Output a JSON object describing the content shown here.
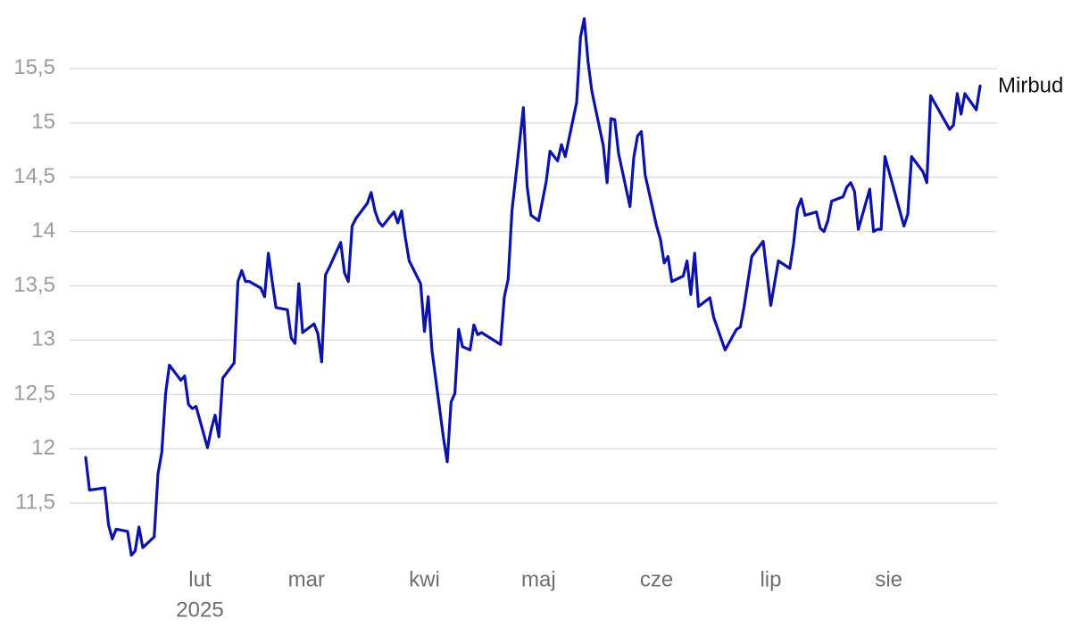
{
  "chart_data": {
    "type": "line",
    "x": [
      "2025-01-02",
      "2025-01-03",
      "2025-01-07",
      "2025-01-08",
      "2025-01-09",
      "2025-01-10",
      "2025-01-13",
      "2025-01-14",
      "2025-01-15",
      "2025-01-16",
      "2025-01-17",
      "2025-01-20",
      "2025-01-21",
      "2025-01-22",
      "2025-01-23",
      "2025-01-24",
      "2025-01-27",
      "2025-01-28",
      "2025-01-29",
      "2025-01-30",
      "2025-01-31",
      "2025-02-03",
      "2025-02-04",
      "2025-02-05",
      "2025-02-06",
      "2025-02-07",
      "2025-02-10",
      "2025-02-11",
      "2025-02-12",
      "2025-02-13",
      "2025-02-14",
      "2025-02-17",
      "2025-02-18",
      "2025-02-19",
      "2025-02-20",
      "2025-02-21",
      "2025-02-24",
      "2025-02-25",
      "2025-02-26",
      "2025-02-27",
      "2025-02-28",
      "2025-03-03",
      "2025-03-04",
      "2025-03-05",
      "2025-03-06",
      "2025-03-07",
      "2025-03-10",
      "2025-03-11",
      "2025-03-12",
      "2025-03-13",
      "2025-03-14",
      "2025-03-17",
      "2025-03-18",
      "2025-03-19",
      "2025-03-20",
      "2025-03-21",
      "2025-03-24",
      "2025-03-25",
      "2025-03-26",
      "2025-03-27",
      "2025-03-28",
      "2025-03-31",
      "2025-04-01",
      "2025-04-02",
      "2025-04-03",
      "2025-04-06",
      "2025-04-07",
      "2025-04-08",
      "2025-04-09",
      "2025-04-10",
      "2025-04-11",
      "2025-04-13",
      "2025-04-14",
      "2025-04-15",
      "2025-04-16",
      "2025-04-21",
      "2025-04-22",
      "2025-04-23",
      "2025-04-24",
      "2025-04-26",
      "2025-04-27",
      "2025-04-28",
      "2025-04-29",
      "2025-05-01",
      "2025-05-03",
      "2025-05-04",
      "2025-05-06",
      "2025-05-07",
      "2025-05-08",
      "2025-05-11",
      "2025-05-12",
      "2025-05-13",
      "2025-05-14",
      "2025-05-15",
      "2025-05-18",
      "2025-05-19",
      "2025-05-20",
      "2025-05-21",
      "2025-05-22",
      "2025-05-25",
      "2025-05-26",
      "2025-05-27",
      "2025-05-28",
      "2025-05-29",
      "2025-06-01",
      "2025-06-02",
      "2025-06-03",
      "2025-06-04",
      "2025-06-05",
      "2025-06-08",
      "2025-06-09",
      "2025-06-10",
      "2025-06-11",
      "2025-06-12",
      "2025-06-15",
      "2025-06-16",
      "2025-06-19",
      "2025-06-22",
      "2025-06-23",
      "2025-06-24",
      "2025-06-26",
      "2025-06-29",
      "2025-07-01",
      "2025-07-03",
      "2025-07-06",
      "2025-07-07",
      "2025-07-08",
      "2025-07-09",
      "2025-07-10",
      "2025-07-13",
      "2025-07-14",
      "2025-07-15",
      "2025-07-16",
      "2025-07-17",
      "2025-07-20",
      "2025-07-21",
      "2025-07-22",
      "2025-07-23",
      "2025-07-24",
      "2025-07-27",
      "2025-07-28",
      "2025-07-29",
      "2025-07-30",
      "2025-07-31",
      "2025-08-05",
      "2025-08-06",
      "2025-08-07",
      "2025-08-10",
      "2025-08-11",
      "2025-08-12",
      "2025-08-17",
      "2025-08-18",
      "2025-08-19",
      "2025-08-20",
      "2025-08-21",
      "2025-08-24",
      "2025-08-25"
    ],
    "series": [
      {
        "name": "Mirbud",
        "color": "#0d12a8",
        "values": [
          11.92,
          11.62,
          11.64,
          11.3,
          11.17,
          11.26,
          11.24,
          11.02,
          11.06,
          11.28,
          11.09,
          11.19,
          11.77,
          11.97,
          12.51,
          12.77,
          12.63,
          12.67,
          12.41,
          12.37,
          12.39,
          12.01,
          12.18,
          12.31,
          12.11,
          12.65,
          12.79,
          13.54,
          13.64,
          13.54,
          13.54,
          13.48,
          13.4,
          13.8,
          13.54,
          13.3,
          13.28,
          13.02,
          12.97,
          13.52,
          13.07,
          13.15,
          13.06,
          12.8,
          13.6,
          13.67,
          13.9,
          13.62,
          13.54,
          14.05,
          14.12,
          14.26,
          14.36,
          14.19,
          14.09,
          14.05,
          14.18,
          14.08,
          14.19,
          13.94,
          13.73,
          13.52,
          13.08,
          13.4,
          12.9,
          12.1,
          11.88,
          12.43,
          12.51,
          13.1,
          12.94,
          12.91,
          13.14,
          13.05,
          13.07,
          12.96,
          13.4,
          13.56,
          14.19,
          14.82,
          15.14,
          14.41,
          14.15,
          14.1,
          14.46,
          14.74,
          14.65,
          14.8,
          14.69,
          15.19,
          15.79,
          15.96,
          15.56,
          15.29,
          14.79,
          14.45,
          15.04,
          15.03,
          14.72,
          14.23,
          14.68,
          14.88,
          14.92,
          14.52,
          14.05,
          13.93,
          13.71,
          13.77,
          13.54,
          13.59,
          13.73,
          13.42,
          13.8,
          13.31,
          13.39,
          13.21,
          12.91,
          13.1,
          13.12,
          13.31,
          13.77,
          13.91,
          13.32,
          13.73,
          13.66,
          13.89,
          14.21,
          14.3,
          14.15,
          14.18,
          14.03,
          14.0,
          14.1,
          14.28,
          14.32,
          14.41,
          14.45,
          14.37,
          14.02,
          14.39,
          14.0,
          14.02,
          14.02,
          14.69,
          14.05,
          14.16,
          14.69,
          14.55,
          14.45,
          15.25,
          14.94,
          14.98,
          15.27,
          15.08,
          15.27,
          15.12,
          15.34
        ]
      }
    ],
    "xlim": [
      "2025-01-02",
      "2025-08-25"
    ],
    "xticks": [
      {
        "value": "2025-02-01",
        "label": "lut"
      },
      {
        "value": "2025-03-01",
        "label": "mar"
      },
      {
        "value": "2025-04-01",
        "label": "kwi"
      },
      {
        "value": "2025-05-01",
        "label": "maj"
      },
      {
        "value": "2025-06-01",
        "label": "cze"
      },
      {
        "value": "2025-07-01",
        "label": "lip"
      },
      {
        "value": "2025-08-01",
        "label": "sie"
      }
    ],
    "xtick_year_label": "2025",
    "ylim": [
      11,
      16
    ],
    "yticks": [
      {
        "value": 11.5,
        "label": "11,5"
      },
      12,
      {
        "value": 12.5,
        "label": "12,5"
      },
      13,
      {
        "value": 13.5,
        "label": "13,5"
      },
      14,
      {
        "value": 14.5,
        "label": "14,5"
      },
      15,
      {
        "value": 15.5,
        "label": "15,5"
      }
    ],
    "grid": true
  }
}
